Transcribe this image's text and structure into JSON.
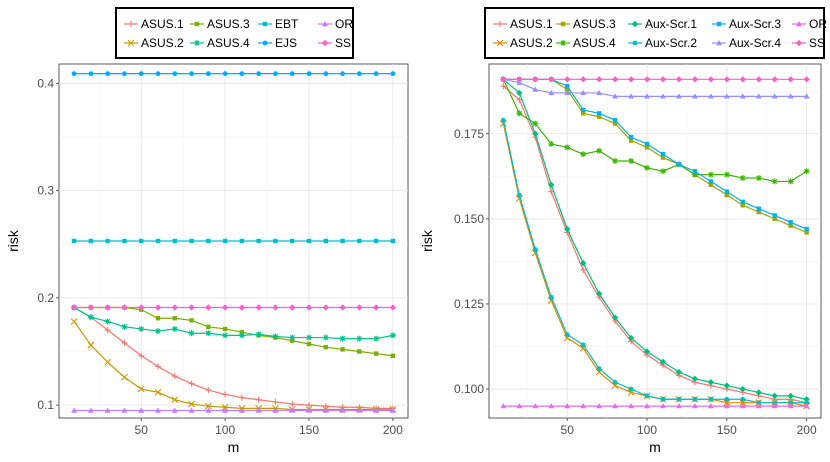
{
  "chart_data": [
    {
      "type": "line",
      "title": "",
      "xlabel": "m",
      "ylabel": "risk",
      "xlim": [
        1,
        209
      ],
      "ylim": [
        0.088,
        0.418
      ],
      "xticks": [
        50,
        100,
        150,
        200
      ],
      "xtick_labels": [
        "50",
        "100",
        "150",
        "200"
      ],
      "yticks": [
        0.1,
        0.2,
        0.3,
        0.4
      ],
      "ytick_labels": [
        "0.1",
        "0.2",
        "0.3",
        "0.4"
      ],
      "legend_position": "top",
      "x": [
        10,
        20,
        30,
        40,
        50,
        60,
        70,
        80,
        90,
        100,
        110,
        120,
        130,
        140,
        150,
        160,
        170,
        180,
        190,
        200
      ],
      "series": [
        {
          "name": "ASUS.1",
          "color": "#F8766D",
          "marker": "plus",
          "values": [
            0.191,
            0.182,
            0.17,
            0.158,
            0.146,
            0.136,
            0.127,
            0.12,
            0.114,
            0.11,
            0.107,
            0.105,
            0.103,
            0.101,
            0.1,
            0.099,
            0.098,
            0.098,
            0.097,
            0.097
          ]
        },
        {
          "name": "ASUS.2",
          "color": "#C49A00",
          "marker": "x",
          "values": [
            0.178,
            0.156,
            0.14,
            0.126,
            0.115,
            0.112,
            0.105,
            0.101,
            0.099,
            0.098,
            0.097,
            0.097,
            0.097,
            0.096,
            0.096,
            0.096,
            0.096,
            0.096,
            0.096,
            0.096
          ]
        },
        {
          "name": "ASUS.3",
          "color": "#7CAE00",
          "marker": "square",
          "values": [
            0.191,
            0.191,
            0.191,
            0.191,
            0.189,
            0.181,
            0.181,
            0.179,
            0.173,
            0.171,
            0.168,
            0.165,
            0.163,
            0.16,
            0.157,
            0.154,
            0.152,
            0.15,
            0.148,
            0.146
          ]
        },
        {
          "name": "ASUS.4",
          "color": "#00C08B",
          "marker": "star",
          "values": [
            0.191,
            0.182,
            0.178,
            0.173,
            0.171,
            0.169,
            0.171,
            0.167,
            0.167,
            0.165,
            0.165,
            0.166,
            0.164,
            0.163,
            0.163,
            0.163,
            0.162,
            0.162,
            0.162,
            0.165
          ]
        },
        {
          "name": "EBT",
          "color": "#00BFC4",
          "marker": "square",
          "values": [
            0.253,
            0.253,
            0.253,
            0.253,
            0.253,
            0.253,
            0.253,
            0.253,
            0.253,
            0.253,
            0.253,
            0.253,
            0.253,
            0.253,
            0.253,
            0.253,
            0.253,
            0.253,
            0.253,
            0.253
          ]
        },
        {
          "name": "EJS",
          "color": "#00A9FF",
          "marker": "circle",
          "values": [
            0.409,
            0.409,
            0.409,
            0.409,
            0.409,
            0.409,
            0.409,
            0.409,
            0.409,
            0.409,
            0.409,
            0.409,
            0.409,
            0.409,
            0.409,
            0.409,
            0.409,
            0.409,
            0.409,
            0.409
          ]
        },
        {
          "name": "OR",
          "color": "#C77CFF",
          "marker": "triangle",
          "values": [
            0.095,
            0.095,
            0.095,
            0.095,
            0.095,
            0.095,
            0.095,
            0.095,
            0.095,
            0.095,
            0.095,
            0.095,
            0.095,
            0.095,
            0.095,
            0.095,
            0.095,
            0.095,
            0.095,
            0.095
          ]
        },
        {
          "name": "SS",
          "color": "#FF61CC",
          "marker": "diamond",
          "values": [
            0.191,
            0.191,
            0.191,
            0.191,
            0.191,
            0.191,
            0.191,
            0.191,
            0.191,
            0.191,
            0.191,
            0.191,
            0.191,
            0.191,
            0.191,
            0.191,
            0.191,
            0.191,
            0.191,
            0.191
          ]
        }
      ]
    },
    {
      "type": "line",
      "title": "",
      "xlabel": "m",
      "ylabel": "risk",
      "xlim": [
        1,
        209
      ],
      "ylim": [
        0.0915,
        0.1955
      ],
      "xticks": [
        50,
        100,
        150,
        200
      ],
      "xtick_labels": [
        "50",
        "100",
        "150",
        "200"
      ],
      "yticks": [
        0.1,
        0.125,
        0.15,
        0.175
      ],
      "ytick_labels": [
        "0.100",
        "0.125",
        "0.150",
        "0.175"
      ],
      "legend_position": "top",
      "x": [
        10,
        20,
        30,
        40,
        50,
        60,
        70,
        80,
        90,
        100,
        110,
        120,
        130,
        140,
        150,
        160,
        170,
        180,
        190,
        200
      ],
      "series": [
        {
          "name": "ASUS.1",
          "color": "#F8766D",
          "marker": "plus",
          "values": [
            0.189,
            0.185,
            0.174,
            0.158,
            0.146,
            0.135,
            0.127,
            0.12,
            0.114,
            0.11,
            0.107,
            0.104,
            0.102,
            0.101,
            0.1,
            0.099,
            0.098,
            0.097,
            0.097,
            0.096
          ]
        },
        {
          "name": "ASUS.2",
          "color": "#E58700",
          "marker": "x",
          "values": [
            0.178,
            0.156,
            0.14,
            0.126,
            0.115,
            0.112,
            0.105,
            0.101,
            0.099,
            0.098,
            0.097,
            0.097,
            0.097,
            0.097,
            0.096,
            0.096,
            0.096,
            0.096,
            0.096,
            0.095
          ]
        },
        {
          "name": "ASUS.3",
          "color": "#A3A500",
          "marker": "square",
          "values": [
            0.191,
            0.191,
            0.191,
            0.191,
            0.188,
            0.181,
            0.18,
            0.178,
            0.173,
            0.171,
            0.168,
            0.166,
            0.163,
            0.16,
            0.157,
            0.154,
            0.152,
            0.15,
            0.148,
            0.146
          ]
        },
        {
          "name": "ASUS.4",
          "color": "#39B600",
          "marker": "star",
          "values": [
            0.191,
            0.181,
            0.178,
            0.172,
            0.171,
            0.169,
            0.17,
            0.167,
            0.167,
            0.165,
            0.164,
            0.166,
            0.163,
            0.163,
            0.163,
            0.162,
            0.162,
            0.161,
            0.161,
            0.164
          ]
        },
        {
          "name": "Aux-Scr.1",
          "color": "#00BF7D",
          "marker": "diamond",
          "values": [
            0.191,
            0.187,
            0.175,
            0.16,
            0.147,
            0.137,
            0.128,
            0.121,
            0.115,
            0.111,
            0.108,
            0.105,
            0.103,
            0.102,
            0.101,
            0.1,
            0.099,
            0.098,
            0.098,
            0.097
          ]
        },
        {
          "name": "Aux-Scr.2",
          "color": "#00BFC4",
          "marker": "circle",
          "values": [
            0.179,
            0.157,
            0.141,
            0.127,
            0.116,
            0.113,
            0.106,
            0.102,
            0.1,
            0.098,
            0.097,
            0.097,
            0.097,
            0.097,
            0.097,
            0.097,
            0.096,
            0.096,
            0.096,
            0.096
          ]
        },
        {
          "name": "Aux-Scr.3",
          "color": "#00B0F6",
          "marker": "square",
          "values": [
            0.191,
            0.191,
            0.191,
            0.191,
            0.189,
            0.182,
            0.181,
            0.179,
            0.174,
            0.172,
            0.169,
            0.166,
            0.164,
            0.161,
            0.158,
            0.155,
            0.153,
            0.151,
            0.149,
            0.147
          ]
        },
        {
          "name": "Aux-Scr.4",
          "color": "#9590FF",
          "marker": "triangle",
          "values": [
            0.191,
            0.19,
            0.188,
            0.187,
            0.187,
            0.187,
            0.187,
            0.186,
            0.186,
            0.186,
            0.186,
            0.186,
            0.186,
            0.186,
            0.186,
            0.186,
            0.186,
            0.186,
            0.186,
            0.186
          ]
        },
        {
          "name": "OR",
          "color": "#E76BF3",
          "marker": "triangle",
          "values": [
            0.095,
            0.095,
            0.095,
            0.095,
            0.095,
            0.095,
            0.095,
            0.095,
            0.095,
            0.095,
            0.095,
            0.095,
            0.095,
            0.095,
            0.095,
            0.095,
            0.095,
            0.095,
            0.095,
            0.095
          ]
        },
        {
          "name": "SS",
          "color": "#FF62BC",
          "marker": "diamond",
          "values": [
            0.191,
            0.191,
            0.191,
            0.191,
            0.191,
            0.191,
            0.191,
            0.191,
            0.191,
            0.191,
            0.191,
            0.191,
            0.191,
            0.191,
            0.191,
            0.191,
            0.191,
            0.191,
            0.191,
            0.191
          ]
        }
      ]
    }
  ]
}
